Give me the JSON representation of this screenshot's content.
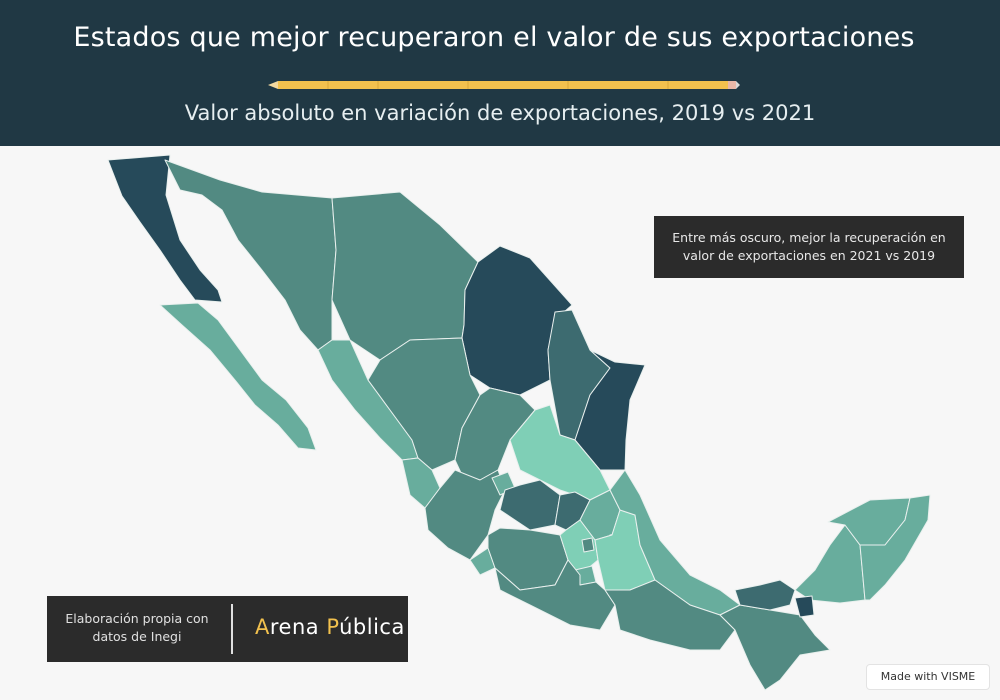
{
  "header": {
    "title": "Estados que mejor recuperaron el valor de sus exportaciones",
    "subtitle": "Valor absoluto en variación de exportaciones, 2019 vs 2021"
  },
  "legend": {
    "line1": "Entre más oscuro, mejor la recuperación en",
    "line2": "valor de exportaciones en 2021 vs 2019"
  },
  "credit": {
    "line1": "Elaboración propia con",
    "line2": "datos de Inegi",
    "brand_first_letter": "A",
    "brand_first_rest": "rena ",
    "brand_second_letter": "P",
    "brand_second_rest": "ública"
  },
  "badge": {
    "label": "Made with VISME"
  },
  "colors": {
    "darkest": "#264a5a",
    "dark": "#3d6b70",
    "mid": "#528a82",
    "midlight": "#68ad9d",
    "light": "#7fcfb6",
    "header_bg": "#203844",
    "accent": "#f2c14e"
  }
}
